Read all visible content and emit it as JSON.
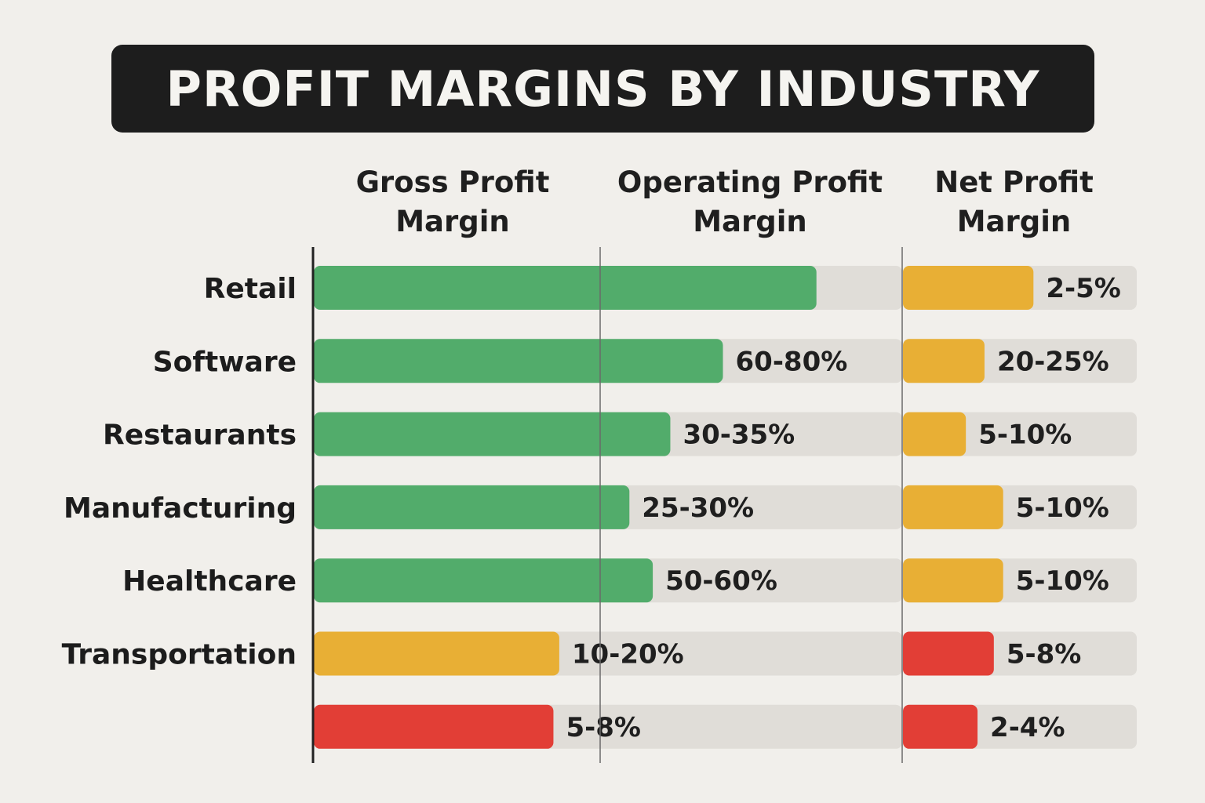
{
  "title": "PROFIT MARGINS BY INDUSTRY",
  "chart_data": {
    "type": "bar",
    "title": "PROFIT MARGINS BY INDUSTRY",
    "columns": {
      "gross": [
        "Gross Profit",
        "Margin"
      ],
      "operating": [
        "Operating Profit",
        "Margin"
      ],
      "net": [
        "Net Profit",
        "Margin"
      ]
    },
    "categories": [
      "Retail",
      "Software",
      "Restaurants",
      "Manufacturing",
      "Healthcare",
      "Transportation",
      ""
    ],
    "gross_operating": {
      "xlim": [
        0,
        100
      ],
      "values": [
        86,
        70,
        61,
        54,
        58,
        42,
        41
      ],
      "labels": [
        "",
        "60-80%",
        "30-35%",
        "25-30%",
        "50-60%",
        "10-20%",
        "5-8%"
      ],
      "colors": [
        "green",
        "green",
        "green",
        "green",
        "green",
        "yellow",
        "red"
      ]
    },
    "net": {
      "xlim": [
        0,
        100
      ],
      "values": [
        56,
        35,
        27,
        43,
        43,
        39,
        32
      ],
      "labels": [
        "2-5%",
        "20-25%",
        "5-10%",
        "5-10%",
        "5-10%",
        "5-8%",
        "2-4%"
      ],
      "colors": [
        "yellow",
        "yellow",
        "yellow",
        "yellow",
        "yellow",
        "red",
        "red"
      ]
    },
    "palette": {
      "green": "#52ac6b",
      "yellow": "#e8af35",
      "red": "#e23e36",
      "track": "#e0ddd8",
      "axis": "#222222"
    },
    "legend": "none",
    "grid": false
  }
}
